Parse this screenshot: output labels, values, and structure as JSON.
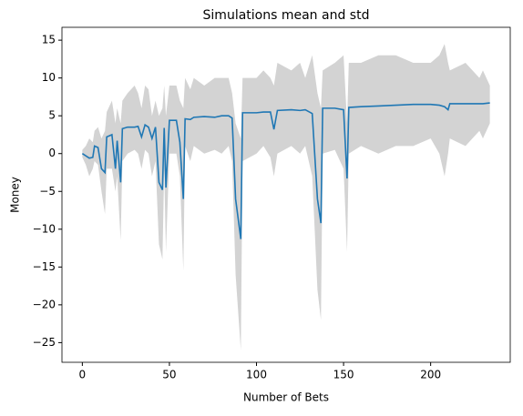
{
  "chart_data": {
    "type": "line",
    "title": "Simulations mean and std",
    "xlabel": "Number of Bets",
    "ylabel": "Money",
    "x": [
      0,
      2,
      4,
      6,
      7,
      9,
      11,
      13,
      14,
      17,
      19,
      20,
      22,
      23,
      26,
      30,
      32,
      34,
      36,
      38,
      40,
      42,
      44,
      46,
      47,
      48,
      50,
      54,
      56,
      58,
      59,
      62,
      64,
      70,
      76,
      80,
      84,
      86,
      88,
      91,
      92,
      100,
      104,
      108,
      110,
      112,
      120,
      125,
      128,
      132,
      135,
      137,
      138,
      145,
      150,
      152,
      153,
      160,
      170,
      180,
      190,
      200,
      205,
      208,
      210,
      211,
      220,
      228,
      230,
      234
    ],
    "series": [
      {
        "color": "#1f77b4",
        "values": [
          0,
          -0.3,
          -0.6,
          -0.5,
          1,
          0.8,
          -2,
          -2.5,
          2.2,
          2.5,
          -2,
          1.7,
          -3.8,
          3.3,
          3.5,
          3.5,
          3.6,
          2.2,
          3.8,
          3.5,
          2,
          3.5,
          -3.8,
          -4.8,
          3.4,
          -4.5,
          4.4,
          4.4,
          1.5,
          -6,
          4.6,
          4.5,
          4.8,
          4.9,
          4.8,
          5,
          5,
          4.7,
          -6,
          -11.3,
          5.4,
          5.4,
          5.5,
          5.5,
          3.2,
          5.7,
          5.8,
          5.7,
          5.8,
          5.3,
          -6,
          -9.2,
          6,
          6,
          5.8,
          -3.3,
          6.1,
          6.2,
          6.3,
          6.4,
          6.5,
          6.5,
          6.4,
          6.2,
          5.8,
          6.6,
          6.6,
          6.6,
          6.6,
          6.7
        ]
      }
    ],
    "band": {
      "color": "#d3d3d3",
      "lower": [
        -0.5,
        -1.5,
        -3,
        -2,
        -1,
        -1.5,
        -5,
        -8,
        -2,
        -2,
        -5,
        -3,
        -11.5,
        -1,
        0,
        0.5,
        0,
        -2,
        0.5,
        0,
        -3,
        -1,
        -12,
        -14,
        -2,
        -13,
        0,
        0,
        -3,
        -15.5,
        1,
        -1,
        1,
        0,
        0.5,
        0,
        1,
        -1,
        -16,
        -26,
        -1,
        0,
        1,
        -0.5,
        -3,
        0,
        1,
        0,
        1,
        -3,
        -18,
        -22,
        0,
        0.5,
        -2,
        -13,
        0,
        1,
        0,
        1,
        1,
        2,
        0,
        -3,
        0,
        2,
        1,
        3,
        2,
        4
      ],
      "upper": [
        0.5,
        1,
        2,
        1.5,
        3,
        3.5,
        2,
        3,
        5.5,
        7,
        4,
        6,
        4,
        7,
        8,
        9,
        8,
        6,
        9,
        8.5,
        5,
        7,
        5,
        6,
        9,
        5,
        9,
        9,
        7,
        6,
        10,
        8.5,
        10,
        9,
        10,
        10,
        10,
        8,
        4,
        2,
        10,
        10,
        11,
        10,
        9,
        12,
        11,
        12,
        10,
        13,
        8,
        6,
        11,
        12,
        13,
        4,
        12,
        12,
        13,
        13,
        12,
        12,
        13,
        14.5,
        12,
        11,
        12,
        10,
        11,
        9
      ]
    },
    "xlim": [
      -11.7,
      245.7
    ],
    "ylim": [
      -27.6,
      16.7
    ],
    "xticks": [
      0,
      50,
      100,
      150,
      200
    ],
    "yticks": [
      {
        "value": -25,
        "label": "−25"
      },
      {
        "value": -20,
        "label": "−20"
      },
      {
        "value": -15,
        "label": "−15"
      },
      {
        "value": -10,
        "label": "−10"
      },
      {
        "value": -5,
        "label": "−5"
      },
      0,
      5,
      10,
      15
    ]
  }
}
